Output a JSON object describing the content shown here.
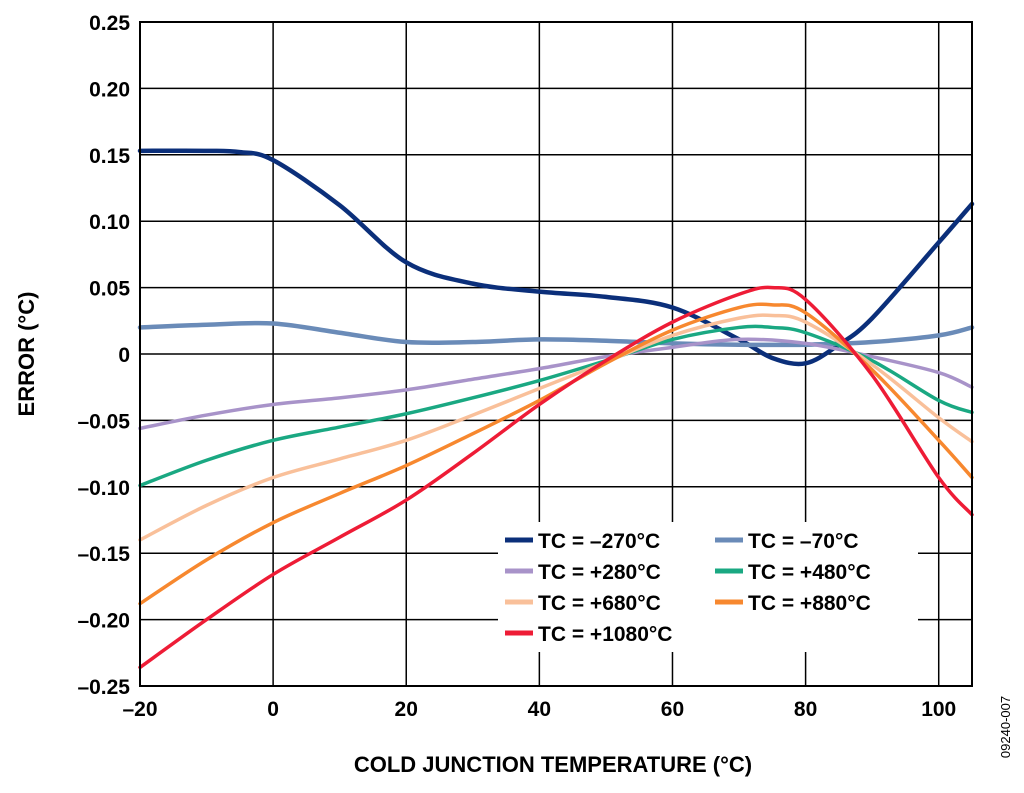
{
  "figure_id": "09240-007",
  "chart_data": {
    "type": "line",
    "title": "",
    "xlabel": "COLD JUNCTION TEMPERATURE (°C)",
    "ylabel": "ERROR (°C)",
    "xlim": [
      -20,
      105
    ],
    "ylim": [
      -0.25,
      0.25
    ],
    "xticks": [
      -20,
      0,
      20,
      40,
      60,
      80,
      100
    ],
    "xtick_labels": [
      "–20",
      "0",
      "20",
      "40",
      "60",
      "80",
      "100"
    ],
    "yticks": [
      0.25,
      0.2,
      0.15,
      0.1,
      0.05,
      0,
      -0.05,
      -0.1,
      -0.15,
      -0.2,
      -0.25
    ],
    "ytick_labels": [
      "0.25",
      "0.20",
      "0.15",
      "0.10",
      "0.05",
      "0",
      "–0.05",
      "–0.10",
      "–0.15",
      "–0.20",
      "–0.25"
    ],
    "grid": true,
    "legend_position": "bottom-right",
    "series": [
      {
        "name": "TC = –270°C",
        "color": "#0b2f7a",
        "x": [
          -20,
          -10,
          -5,
          0,
          10,
          20,
          30,
          40,
          50,
          60,
          70,
          75,
          80,
          85,
          90,
          100,
          105
        ],
        "y": [
          0.153,
          0.153,
          0.152,
          0.146,
          0.112,
          0.069,
          0.053,
          0.047,
          0.043,
          0.035,
          0.011,
          -0.003,
          -0.007,
          0.007,
          0.027,
          0.084,
          0.113
        ]
      },
      {
        "name": "TC = –70°C",
        "color": "#6a8bb8",
        "x": [
          -20,
          -10,
          0,
          10,
          20,
          30,
          40,
          50,
          60,
          70,
          80,
          90,
          100,
          105
        ],
        "y": [
          0.02,
          0.022,
          0.023,
          0.016,
          0.009,
          0.009,
          0.011,
          0.01,
          0.008,
          0.007,
          0.007,
          0.009,
          0.014,
          0.02
        ]
      },
      {
        "name": "TC = +280°C",
        "color": "#a893c9",
        "x": [
          -20,
          -10,
          0,
          10,
          20,
          30,
          40,
          50,
          60,
          70,
          80,
          90,
          100,
          105
        ],
        "y": [
          -0.056,
          -0.046,
          -0.038,
          -0.033,
          -0.027,
          -0.019,
          -0.011,
          -0.002,
          0.005,
          0.011,
          0.008,
          -0.002,
          -0.014,
          -0.025
        ]
      },
      {
        "name": "TC = +480°C",
        "color": "#1aa882",
        "x": [
          -20,
          -10,
          0,
          10,
          20,
          30,
          40,
          50,
          60,
          70,
          75,
          80,
          90,
          100,
          105
        ],
        "y": [
          -0.099,
          -0.08,
          -0.065,
          -0.055,
          -0.045,
          -0.033,
          -0.02,
          -0.005,
          0.011,
          0.02,
          0.02,
          0.016,
          -0.005,
          -0.035,
          -0.044
        ]
      },
      {
        "name": "TC = +680°C",
        "color": "#f9c09a",
        "x": [
          -20,
          -10,
          0,
          10,
          20,
          30,
          40,
          50,
          60,
          70,
          75,
          80,
          90,
          100,
          105
        ],
        "y": [
          -0.14,
          -0.114,
          -0.093,
          -0.079,
          -0.065,
          -0.046,
          -0.026,
          -0.006,
          0.014,
          0.027,
          0.029,
          0.024,
          -0.008,
          -0.048,
          -0.066
        ]
      },
      {
        "name": "TC = +880°C",
        "color": "#f7882f",
        "x": [
          -20,
          -10,
          0,
          10,
          20,
          30,
          40,
          50,
          60,
          70,
          75,
          80,
          90,
          100,
          105
        ],
        "y": [
          -0.188,
          -0.155,
          -0.127,
          -0.105,
          -0.084,
          -0.06,
          -0.035,
          -0.007,
          0.018,
          0.035,
          0.037,
          0.031,
          -0.012,
          -0.065,
          -0.093
        ]
      },
      {
        "name": "TC = +1080°C",
        "color": "#ee1c36",
        "x": [
          -20,
          -10,
          0,
          10,
          20,
          30,
          40,
          50,
          60,
          70,
          75,
          80,
          90,
          100,
          105
        ],
        "y": [
          -0.236,
          -0.2,
          -0.166,
          -0.138,
          -0.11,
          -0.075,
          -0.038,
          -0.005,
          0.024,
          0.045,
          0.05,
          0.041,
          -0.016,
          -0.093,
          -0.121
        ]
      }
    ]
  }
}
